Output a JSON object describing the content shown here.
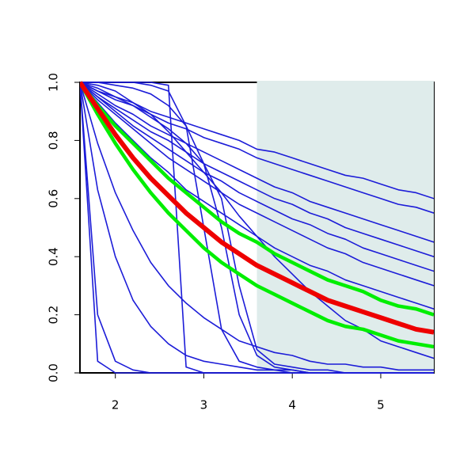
{
  "chart_data": {
    "type": "line",
    "x": [
      1.6,
      1.8,
      2.0,
      2.2,
      2.4,
      2.6,
      2.8,
      3.0,
      3.2,
      3.4,
      3.6,
      3.8,
      4.0,
      4.2,
      4.4,
      4.6,
      4.8,
      5.0,
      5.2,
      5.4,
      5.6
    ],
    "xlim": [
      1.6,
      5.6
    ],
    "ylim": [
      0,
      1
    ],
    "xticks": [
      2,
      3,
      4,
      5
    ],
    "yticks": [
      {
        "value": 0,
        "label": "0.0"
      },
      0.2,
      0.4,
      0.6,
      0.8,
      {
        "value": 1,
        "label": "1.0"
      }
    ],
    "shade_x": [
      3.6,
      5.6
    ],
    "shade_color": "#dfeceb",
    "series": [
      {
        "color": "#1c1cd8",
        "linewidth": 1.6,
        "values": [
          1,
          0.97,
          0.95,
          0.93,
          0.9,
          0.88,
          0.86,
          0.84,
          0.82,
          0.8,
          0.77,
          0.76,
          0.74,
          0.72,
          0.7,
          0.68,
          0.67,
          0.65,
          0.63,
          0.62,
          0.6
        ]
      },
      {
        "color": "#1c1cd8",
        "linewidth": 1.6,
        "values": [
          1,
          0.97,
          0.94,
          0.92,
          0.89,
          0.86,
          0.84,
          0.81,
          0.79,
          0.77,
          0.74,
          0.72,
          0.7,
          0.68,
          0.66,
          0.64,
          0.62,
          0.6,
          0.58,
          0.57,
          0.55
        ]
      },
      {
        "color": "#1c1cd8",
        "linewidth": 1.6,
        "values": [
          1,
          0.96,
          0.92,
          0.89,
          0.85,
          0.82,
          0.79,
          0.76,
          0.73,
          0.7,
          0.67,
          0.64,
          0.62,
          0.59,
          0.57,
          0.55,
          0.53,
          0.51,
          0.49,
          0.47,
          0.45
        ]
      },
      {
        "color": "#1c1cd8",
        "linewidth": 1.6,
        "values": [
          1,
          0.95,
          0.91,
          0.87,
          0.83,
          0.8,
          0.76,
          0.72,
          0.69,
          0.66,
          0.63,
          0.6,
          0.58,
          0.55,
          0.53,
          0.5,
          0.48,
          0.46,
          0.44,
          0.42,
          0.4
        ]
      },
      {
        "color": "#1c1cd8",
        "linewidth": 1.6,
        "values": [
          1,
          0.95,
          0.9,
          0.85,
          0.81,
          0.77,
          0.73,
          0.69,
          0.66,
          0.62,
          0.59,
          0.56,
          0.53,
          0.51,
          0.48,
          0.46,
          0.43,
          0.41,
          0.39,
          0.37,
          0.35
        ]
      },
      {
        "color": "#1c1cd8",
        "linewidth": 1.6,
        "values": [
          1,
          0.94,
          0.89,
          0.84,
          0.79,
          0.74,
          0.7,
          0.66,
          0.62,
          0.58,
          0.55,
          0.52,
          0.49,
          0.46,
          0.43,
          0.41,
          0.38,
          0.36,
          0.34,
          0.32,
          0.3
        ]
      },
      {
        "color": "#1c1cd8",
        "linewidth": 1.6,
        "values": [
          1,
          0.93,
          0.86,
          0.8,
          0.74,
          0.69,
          0.63,
          0.59,
          0.55,
          0.51,
          0.47,
          0.43,
          0.4,
          0.37,
          0.35,
          0.32,
          0.3,
          0.28,
          0.26,
          0.24,
          0.22
        ]
      },
      {
        "color": "#1c1cd8",
        "linewidth": 1.6,
        "values": [
          1,
          0.99,
          0.97,
          0.93,
          0.89,
          0.83,
          0.76,
          0.69,
          0.62,
          0.54,
          0.47,
          0.4,
          0.34,
          0.28,
          0.23,
          0.18,
          0.15,
          0.11,
          0.09,
          0.07,
          0.05
        ]
      },
      {
        "color": "#1c1cd8",
        "linewidth": 1.6,
        "values": [
          1,
          0.04,
          0,
          0,
          0,
          0,
          0,
          0,
          0,
          0,
          0,
          0,
          0,
          0,
          0,
          0,
          0,
          0,
          0,
          0,
          0
        ]
      },
      {
        "color": "#1c1cd8",
        "linewidth": 1.6,
        "values": [
          1,
          0.2,
          0.04,
          0.01,
          0,
          0,
          0,
          0,
          0,
          0,
          0,
          0,
          0,
          0,
          0,
          0,
          0,
          0,
          0,
          0,
          0
        ]
      },
      {
        "color": "#1c1cd8",
        "linewidth": 1.6,
        "values": [
          1,
          0.63,
          0.4,
          0.25,
          0.16,
          0.1,
          0.06,
          0.04,
          0.03,
          0.02,
          0.01,
          0.01,
          0,
          0,
          0,
          0,
          0,
          0,
          0,
          0,
          0
        ]
      },
      {
        "color": "#1c1cd8",
        "linewidth": 1.6,
        "values": [
          1,
          0.79,
          0.62,
          0.49,
          0.38,
          0.3,
          0.24,
          0.19,
          0.15,
          0.11,
          0.09,
          0.07,
          0.06,
          0.04,
          0.03,
          0.03,
          0.02,
          0.02,
          0.01,
          0.01,
          0.01
        ]
      },
      {
        "color": "#1c1cd8",
        "linewidth": 1.6,
        "values": [
          1,
          1,
          1,
          1,
          1,
          0.99,
          0.02,
          0,
          0,
          0,
          0,
          0,
          0,
          0,
          0,
          0,
          0,
          0,
          0,
          0,
          0
        ]
      },
      {
        "color": "#1c1cd8",
        "linewidth": 1.6,
        "values": [
          1,
          1,
          1,
          1,
          0.99,
          0.97,
          0.85,
          0.5,
          0.15,
          0.04,
          0.02,
          0.01,
          0.01,
          0,
          0,
          0,
          0,
          0,
          0,
          0,
          0
        ]
      },
      {
        "color": "#1c1cd8",
        "linewidth": 1.6,
        "values": [
          1,
          1,
          0.99,
          0.98,
          0.96,
          0.92,
          0.85,
          0.72,
          0.5,
          0.2,
          0.06,
          0.02,
          0.01,
          0,
          0,
          0,
          0,
          0,
          0,
          0,
          0
        ]
      },
      {
        "color": "#1c1cd8",
        "linewidth": 1.6,
        "values": [
          1,
          0.98,
          0.95,
          0.92,
          0.88,
          0.84,
          0.79,
          0.72,
          0.6,
          0.3,
          0.08,
          0.03,
          0.02,
          0.01,
          0.01,
          0,
          0,
          0,
          0,
          0,
          0
        ]
      },
      {
        "color": "#00ee00",
        "linewidth": 4.5,
        "values": [
          1,
          0.92,
          0.85,
          0.79,
          0.73,
          0.67,
          0.62,
          0.57,
          0.52,
          0.48,
          0.45,
          0.41,
          0.38,
          0.35,
          0.32,
          0.3,
          0.28,
          0.25,
          0.23,
          0.22,
          0.2
        ]
      },
      {
        "color": "#00ee00",
        "linewidth": 4.5,
        "values": [
          1,
          0.89,
          0.79,
          0.7,
          0.62,
          0.55,
          0.49,
          0.43,
          0.38,
          0.34,
          0.3,
          0.27,
          0.24,
          0.21,
          0.18,
          0.16,
          0.15,
          0.13,
          0.11,
          0.1,
          0.09
        ]
      },
      {
        "color": "#ee0000",
        "linewidth": 6,
        "values": [
          1,
          0.91,
          0.82,
          0.74,
          0.67,
          0.61,
          0.55,
          0.5,
          0.45,
          0.41,
          0.37,
          0.34,
          0.31,
          0.28,
          0.25,
          0.23,
          0.21,
          0.19,
          0.17,
          0.15,
          0.14
        ]
      }
    ]
  }
}
